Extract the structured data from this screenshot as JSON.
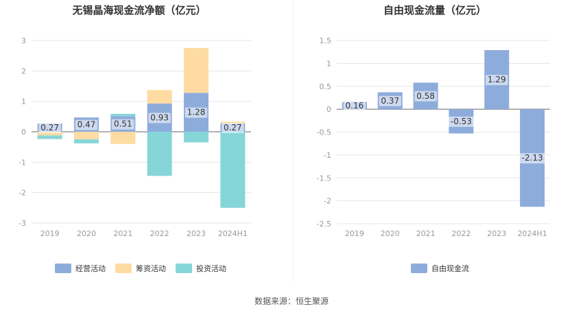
{
  "source_text": "数据来源：恒生聚源",
  "colors": {
    "operating": "#8eacdb",
    "financing": "#fddba2",
    "investing": "#86d5d8",
    "fcf": "#8eacdb",
    "grid": "#e6e6e6",
    "axis_text": "#999999",
    "title": "#333333",
    "zero_line": "#666666"
  },
  "chart_data": [
    {
      "type": "bar",
      "stacked": true,
      "title": "无锡晶海现金流净额（亿元）",
      "categories": [
        "2019",
        "2020",
        "2021",
        "2022",
        "2023",
        "2024H1"
      ],
      "ylim": [
        -3,
        3
      ],
      "yticks": [
        3,
        2,
        1,
        0,
        -1,
        -2,
        -3
      ],
      "grid": true,
      "legend_position": "bottom",
      "series": [
        {
          "name": "经营活动",
          "color_key": "operating",
          "values": [
            0.27,
            0.47,
            0.51,
            0.93,
            1.28,
            0.27
          ],
          "labels": [
            "0.27",
            "0.47",
            "0.51",
            "0.93",
            "1.28",
            "0.27"
          ]
        },
        {
          "name": "筹资活动",
          "color_key": "financing",
          "values": [
            -0.12,
            -0.25,
            -0.4,
            0.44,
            1.47,
            0.06
          ]
        },
        {
          "name": "投资活动",
          "color_key": "investing",
          "values": [
            -0.12,
            -0.13,
            0.08,
            -1.45,
            -0.35,
            -2.5
          ]
        }
      ]
    },
    {
      "type": "bar",
      "stacked": false,
      "title": "自由现金流量（亿元）",
      "categories": [
        "2019",
        "2020",
        "2021",
        "2022",
        "2023",
        "2024H1"
      ],
      "ylim": [
        -2.5,
        1.5
      ],
      "yticks": [
        1.5,
        1,
        0.5,
        0,
        -0.5,
        -1,
        -1.5,
        -2,
        -2.5
      ],
      "grid": true,
      "legend_position": "bottom",
      "series": [
        {
          "name": "自由现金流",
          "color_key": "fcf",
          "values": [
            0.16,
            0.37,
            0.58,
            -0.53,
            1.29,
            -2.13
          ],
          "labels": [
            "0.16",
            "0.37",
            "0.58",
            "-0.53",
            "1.29",
            "-2.13"
          ]
        }
      ]
    }
  ]
}
